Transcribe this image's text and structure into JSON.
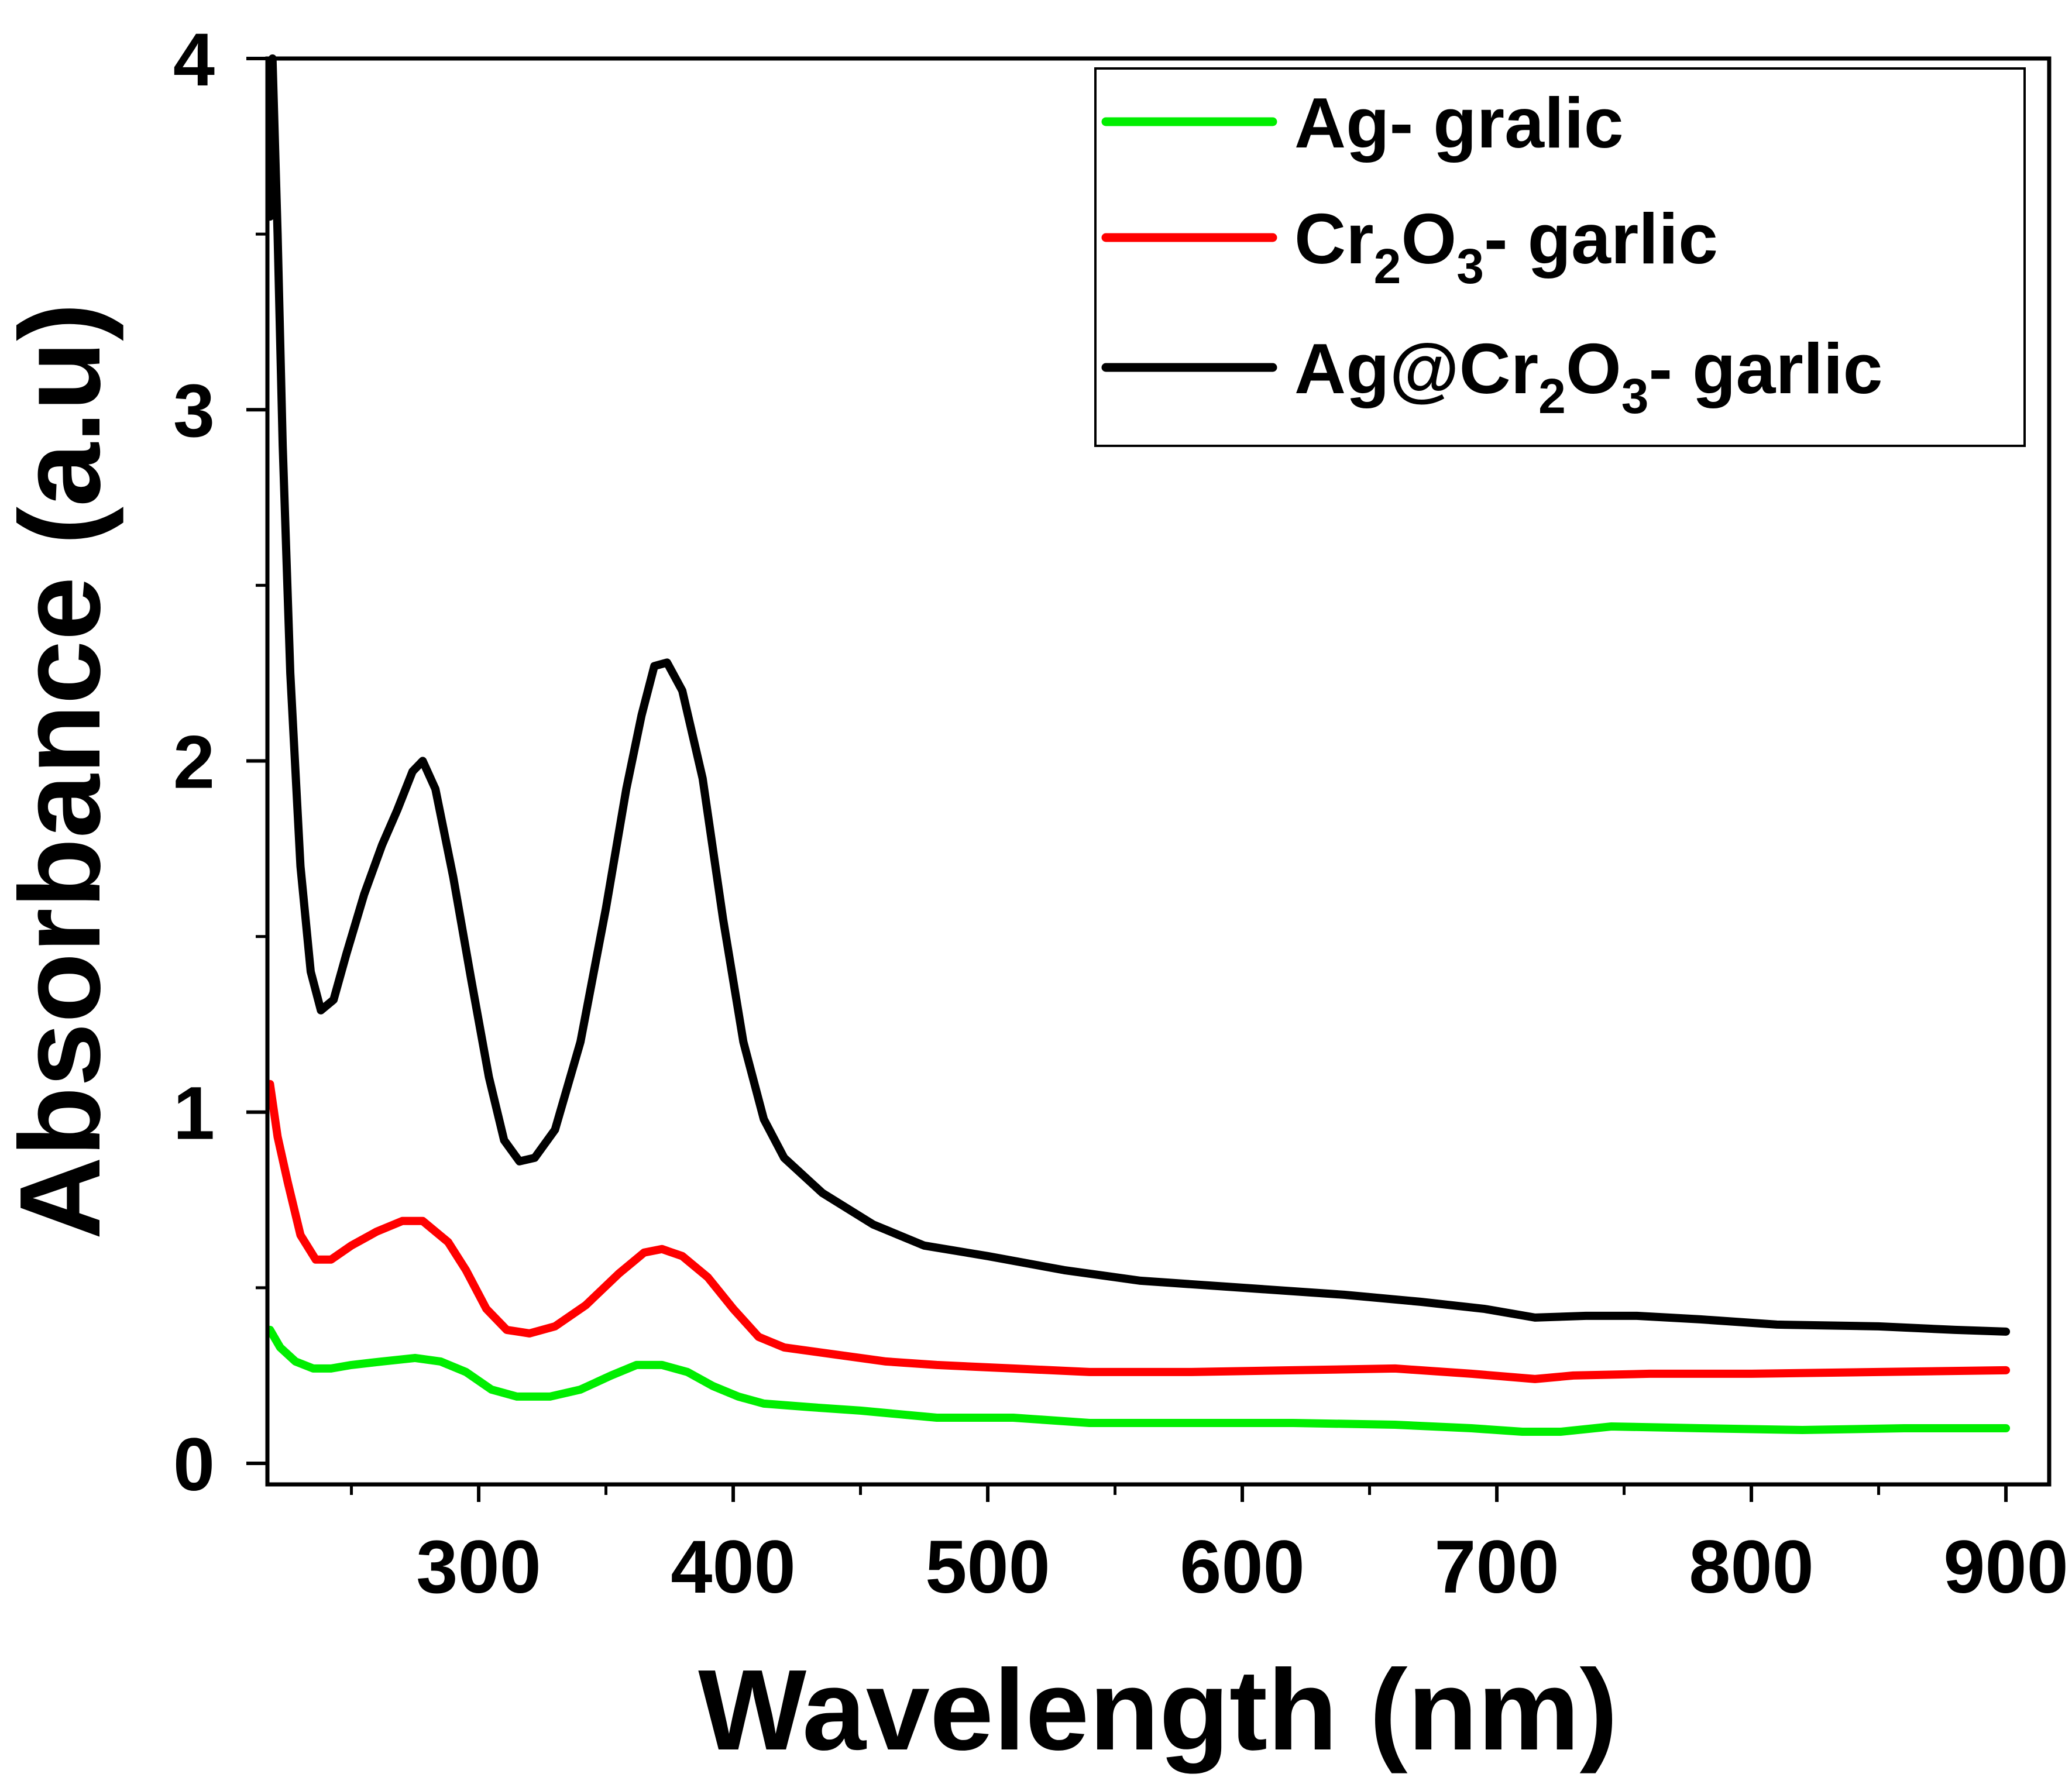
{
  "chart_data": {
    "type": "line",
    "xlabel": "Wavelength (nm)",
    "ylabel": "Absorbance (a.u)",
    "xlim": [
      217,
      917
    ],
    "ylim": [
      -0.06,
      4.0
    ],
    "x_major_ticks": [
      300,
      400,
      500,
      600,
      700,
      800,
      900
    ],
    "x_minor_ticks": [
      250,
      350,
      450,
      550,
      650,
      750,
      850
    ],
    "y_major_ticks": [
      0,
      1,
      2,
      3,
      4
    ],
    "y_minor_ticks": [
      0.5,
      1.5,
      2.5,
      3.5
    ],
    "x_tick_labels": [
      "300",
      "400",
      "500",
      "600",
      "700",
      "800",
      "900"
    ],
    "y_tick_labels": [
      "0",
      "1",
      "2",
      "3",
      "4"
    ],
    "legend_position": "top-right",
    "series": [
      {
        "name": "Ag- gralic",
        "legend_parts": [
          {
            "text": "Ag- gralic",
            "sub": false
          }
        ],
        "color": "#00ee00",
        "points": [
          [
            218,
            0.38
          ],
          [
            222,
            0.33
          ],
          [
            228,
            0.29
          ],
          [
            235,
            0.27
          ],
          [
            242,
            0.27
          ],
          [
            250,
            0.28
          ],
          [
            262,
            0.29
          ],
          [
            275,
            0.3
          ],
          [
            285,
            0.29
          ],
          [
            295,
            0.26
          ],
          [
            305,
            0.21
          ],
          [
            315,
            0.19
          ],
          [
            328,
            0.19
          ],
          [
            340,
            0.21
          ],
          [
            352,
            0.25
          ],
          [
            362,
            0.28
          ],
          [
            372,
            0.28
          ],
          [
            382,
            0.26
          ],
          [
            392,
            0.22
          ],
          [
            402,
            0.19
          ],
          [
            412,
            0.17
          ],
          [
            430,
            0.16
          ],
          [
            450,
            0.15
          ],
          [
            480,
            0.13
          ],
          [
            510,
            0.13
          ],
          [
            540,
            0.115
          ],
          [
            580,
            0.115
          ],
          [
            620,
            0.115
          ],
          [
            660,
            0.11
          ],
          [
            690,
            0.1
          ],
          [
            710,
            0.09
          ],
          [
            725,
            0.09
          ],
          [
            745,
            0.105
          ],
          [
            780,
            0.1
          ],
          [
            820,
            0.095
          ],
          [
            860,
            0.1
          ],
          [
            900,
            0.1
          ]
        ]
      },
      {
        "name": "Cr2O3- garlic",
        "legend_parts": [
          {
            "text": "Cr",
            "sub": false
          },
          {
            "text": "2",
            "sub": true
          },
          {
            "text": "O",
            "sub": false
          },
          {
            "text": "3",
            "sub": true
          },
          {
            "text": "- garlic",
            "sub": false
          }
        ],
        "color": "#ff0000",
        "points": [
          [
            218,
            1.08
          ],
          [
            221,
            0.93
          ],
          [
            225,
            0.8
          ],
          [
            230,
            0.65
          ],
          [
            236,
            0.58
          ],
          [
            242,
            0.58
          ],
          [
            250,
            0.62
          ],
          [
            260,
            0.66
          ],
          [
            270,
            0.69
          ],
          [
            278,
            0.69
          ],
          [
            288,
            0.63
          ],
          [
            295,
            0.55
          ],
          [
            303,
            0.44
          ],
          [
            311,
            0.38
          ],
          [
            320,
            0.37
          ],
          [
            330,
            0.39
          ],
          [
            342,
            0.45
          ],
          [
            355,
            0.54
          ],
          [
            365,
            0.6
          ],
          [
            372,
            0.61
          ],
          [
            380,
            0.59
          ],
          [
            390,
            0.53
          ],
          [
            400,
            0.44
          ],
          [
            410,
            0.36
          ],
          [
            420,
            0.33
          ],
          [
            440,
            0.31
          ],
          [
            460,
            0.29
          ],
          [
            480,
            0.28
          ],
          [
            510,
            0.27
          ],
          [
            540,
            0.26
          ],
          [
            580,
            0.26
          ],
          [
            620,
            0.265
          ],
          [
            660,
            0.27
          ],
          [
            690,
            0.255
          ],
          [
            715,
            0.24
          ],
          [
            730,
            0.25
          ],
          [
            760,
            0.255
          ],
          [
            800,
            0.255
          ],
          [
            850,
            0.26
          ],
          [
            900,
            0.265
          ]
        ]
      },
      {
        "name": "Ag@Cr2O3- garlic",
        "legend_parts": [
          {
            "text": "Ag@Cr",
            "sub": false
          },
          {
            "text": "2",
            "sub": true
          },
          {
            "text": "O",
            "sub": false
          },
          {
            "text": "3",
            "sub": true
          },
          {
            "text": "- garlic",
            "sub": false
          }
        ],
        "color": "#000000",
        "points": [
          [
            218,
            3.55
          ],
          [
            219,
            4.0
          ],
          [
            221,
            3.5
          ],
          [
            223,
            2.9
          ],
          [
            226,
            2.25
          ],
          [
            230,
            1.7
          ],
          [
            234,
            1.4
          ],
          [
            238,
            1.29
          ],
          [
            243,
            1.32
          ],
          [
            248,
            1.45
          ],
          [
            255,
            1.62
          ],
          [
            262,
            1.76
          ],
          [
            268,
            1.86
          ],
          [
            274,
            1.97
          ],
          [
            278,
            2.0
          ],
          [
            283,
            1.92
          ],
          [
            290,
            1.67
          ],
          [
            297,
            1.38
          ],
          [
            304,
            1.1
          ],
          [
            310,
            0.92
          ],
          [
            316,
            0.86
          ],
          [
            322,
            0.87
          ],
          [
            330,
            0.95
          ],
          [
            340,
            1.2
          ],
          [
            350,
            1.58
          ],
          [
            358,
            1.92
          ],
          [
            364,
            2.13
          ],
          [
            369,
            2.27
          ],
          [
            374,
            2.28
          ],
          [
            380,
            2.2
          ],
          [
            388,
            1.95
          ],
          [
            396,
            1.55
          ],
          [
            404,
            1.2
          ],
          [
            412,
            0.98
          ],
          [
            420,
            0.87
          ],
          [
            435,
            0.77
          ],
          [
            455,
            0.68
          ],
          [
            475,
            0.62
          ],
          [
            500,
            0.59
          ],
          [
            530,
            0.55
          ],
          [
            560,
            0.52
          ],
          [
            600,
            0.5
          ],
          [
            640,
            0.48
          ],
          [
            670,
            0.46
          ],
          [
            695,
            0.44
          ],
          [
            715,
            0.415
          ],
          [
            735,
            0.42
          ],
          [
            755,
            0.42
          ],
          [
            780,
            0.41
          ],
          [
            810,
            0.395
          ],
          [
            850,
            0.39
          ],
          [
            880,
            0.38
          ],
          [
            900,
            0.375
          ]
        ]
      }
    ]
  }
}
